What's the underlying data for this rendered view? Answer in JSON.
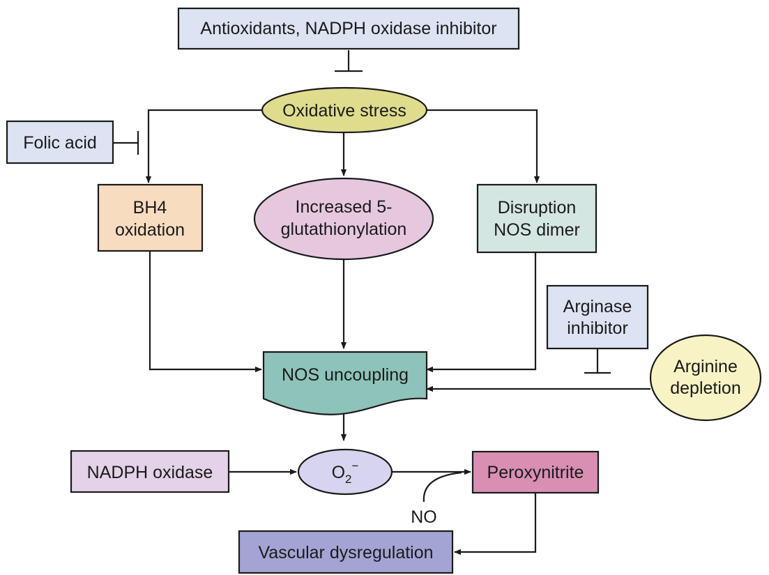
{
  "nodes": {
    "antioxidants": {
      "label": "Antioxidants, NADPH oxidase inhibitor",
      "fill": "#dde3f3"
    },
    "oxidative_stress": {
      "label": "Oxidative stress",
      "fill": "#e0dc8e"
    },
    "folic_acid": {
      "label": "Folic acid",
      "fill": "#dde3f3"
    },
    "bh4_oxidation": {
      "lines": [
        "BH4",
        "oxidation"
      ],
      "fill": "#f8dcbf"
    },
    "glutathionylation": {
      "lines": [
        "Increased 5-",
        "glutathionylation"
      ],
      "fill": "#e6c8de"
    },
    "nos_dimer": {
      "lines": [
        "Disruption",
        "NOS dimer"
      ],
      "fill": "#d4e6e2"
    },
    "arginase_inhibitor": {
      "lines": [
        "Arginase",
        "inhibitor"
      ],
      "fill": "#dde3f3"
    },
    "arginine_depletion": {
      "lines": [
        "Arginine",
        "depletion"
      ],
      "fill": "#f7f3c4"
    },
    "nos_uncoupling": {
      "label": "NOS uncoupling",
      "fill": "#8ec3b9"
    },
    "nadph_oxidase": {
      "label": "NADPH oxidase",
      "fill": "#e3d2e8"
    },
    "superoxide": {
      "base": "O",
      "sub": "2",
      "sup": "−",
      "fill": "#d6d4ef"
    },
    "peroxynitrite": {
      "label": "Peroxynitrite",
      "fill": "#d88fb2"
    },
    "no_label": {
      "label": "NO"
    },
    "vascular": {
      "label": "Vascular dysregulation",
      "fill": "#a4a4d4"
    }
  }
}
